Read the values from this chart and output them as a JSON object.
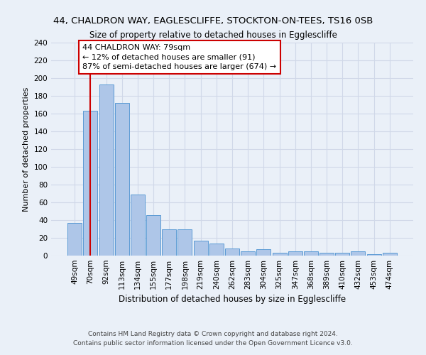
{
  "title": "44, CHALDRON WAY, EAGLESCLIFFE, STOCKTON-ON-TEES, TS16 0SB",
  "subtitle": "Size of property relative to detached houses in Egglescliffe",
  "xlabel": "Distribution of detached houses by size in Egglescliffe",
  "ylabel": "Number of detached properties",
  "categories": [
    "49sqm",
    "70sqm",
    "92sqm",
    "113sqm",
    "134sqm",
    "155sqm",
    "177sqm",
    "198sqm",
    "219sqm",
    "240sqm",
    "262sqm",
    "283sqm",
    "304sqm",
    "325sqm",
    "347sqm",
    "368sqm",
    "389sqm",
    "410sqm",
    "432sqm",
    "453sqm",
    "474sqm"
  ],
  "values": [
    37,
    163,
    193,
    172,
    69,
    46,
    30,
    30,
    17,
    14,
    8,
    5,
    7,
    3,
    5,
    5,
    3,
    3,
    5,
    2,
    3
  ],
  "bar_color": "#aec6e8",
  "bar_edge_color": "#5b9bd5",
  "grid_color": "#d0d8e8",
  "background_color": "#eaf0f8",
  "annotation_box_color": "#cc0000",
  "annotation_line1": "44 CHALDRON WAY: 79sqm",
  "annotation_line2": "← 12% of detached houses are smaller (91)",
  "annotation_line3": "87% of semi-detached houses are larger (674) →",
  "vline_color": "#cc0000",
  "ylim": [
    0,
    240
  ],
  "yticks": [
    0,
    20,
    40,
    60,
    80,
    100,
    120,
    140,
    160,
    180,
    200,
    220,
    240
  ],
  "footer": "Contains HM Land Registry data © Crown copyright and database right 2024.\nContains public sector information licensed under the Open Government Licence v3.0.",
  "title_fontsize": 9.5,
  "subtitle_fontsize": 8.5,
  "xlabel_fontsize": 8.5,
  "ylabel_fontsize": 8,
  "tick_fontsize": 7.5,
  "footer_fontsize": 6.5,
  "annotation_fontsize": 8
}
